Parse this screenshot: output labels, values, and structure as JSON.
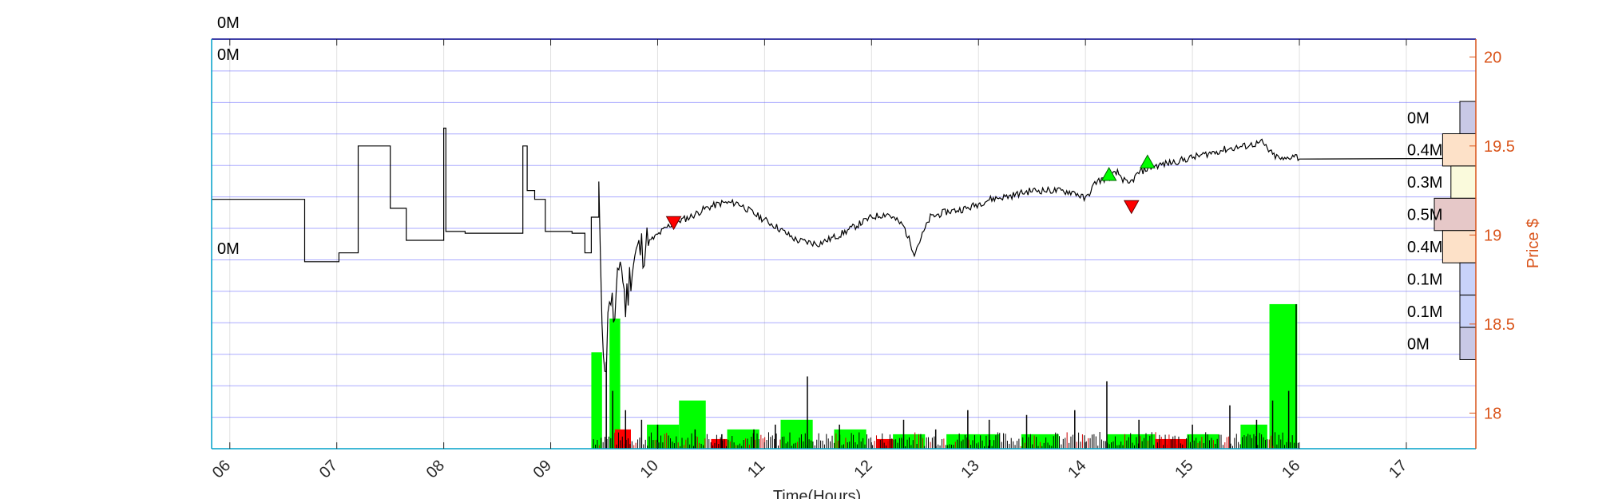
{
  "chart_data": {
    "type": "line",
    "title": "",
    "xlabel": "Time(Hours)",
    "ylabel": "Price $",
    "xlim": [
      5.83,
      17.65
    ],
    "ylim": [
      17.8,
      20.1
    ],
    "x_ticks": [
      "06",
      "07",
      "08",
      "09",
      "10",
      "11",
      "12",
      "13",
      "14",
      "15",
      "16",
      "17"
    ],
    "y_ticks": [
      18,
      18.5,
      19,
      19.5,
      20
    ],
    "y_tick_labels": [
      "18",
      "18.5",
      "19",
      "19.5",
      "20"
    ],
    "grid": true,
    "price_series": [
      [
        5.83,
        19.2
      ],
      [
        6.65,
        19.2
      ],
      [
        6.7,
        18.85
      ],
      [
        6.98,
        18.85
      ],
      [
        7.02,
        18.9
      ],
      [
        7.18,
        18.9
      ],
      [
        7.2,
        19.5
      ],
      [
        7.45,
        19.5
      ],
      [
        7.5,
        19.15
      ],
      [
        7.62,
        19.15
      ],
      [
        7.65,
        18.97
      ],
      [
        8.0,
        18.97
      ],
      [
        8.0,
        19.6
      ],
      [
        8.02,
        19.02
      ],
      [
        8.2,
        19.01
      ],
      [
        8.72,
        19.01
      ],
      [
        8.74,
        19.5
      ],
      [
        8.78,
        19.25
      ],
      [
        8.85,
        19.2
      ],
      [
        8.95,
        19.02
      ],
      [
        9.05,
        19.02
      ],
      [
        9.2,
        19.01
      ],
      [
        9.32,
        18.9
      ],
      [
        9.38,
        19.1
      ],
      [
        9.45,
        19.3
      ],
      [
        9.48,
        18.4
      ],
      [
        9.52,
        18.3
      ],
      [
        9.55,
        18.7
      ],
      [
        9.6,
        18.5
      ],
      [
        9.65,
        18.9
      ],
      [
        9.7,
        18.6
      ],
      [
        9.75,
        18.8
      ],
      [
        9.8,
        18.9
      ],
      [
        9.9,
        18.95
      ],
      [
        10.0,
        19.0
      ],
      [
        10.1,
        19.05
      ],
      [
        10.2,
        19.08
      ],
      [
        10.3,
        19.1
      ],
      [
        10.45,
        19.15
      ],
      [
        10.6,
        19.18
      ],
      [
        10.75,
        19.18
      ],
      [
        10.9,
        19.12
      ],
      [
        11.1,
        19.05
      ],
      [
        11.3,
        18.97
      ],
      [
        11.5,
        18.95
      ],
      [
        11.7,
        19.0
      ],
      [
        11.85,
        19.05
      ],
      [
        12.0,
        19.1
      ],
      [
        12.15,
        19.12
      ],
      [
        12.3,
        19.05
      ],
      [
        12.4,
        18.9
      ],
      [
        12.55,
        19.1
      ],
      [
        12.7,
        19.13
      ],
      [
        12.9,
        19.15
      ],
      [
        13.1,
        19.2
      ],
      [
        13.3,
        19.22
      ],
      [
        13.5,
        19.25
      ],
      [
        13.7,
        19.25
      ],
      [
        13.9,
        19.24
      ],
      [
        14.0,
        19.2
      ],
      [
        14.1,
        19.3
      ],
      [
        14.2,
        19.32
      ],
      [
        14.3,
        19.35
      ],
      [
        14.4,
        19.28
      ],
      [
        14.5,
        19.35
      ],
      [
        14.6,
        19.38
      ],
      [
        14.75,
        19.4
      ],
      [
        14.9,
        19.42
      ],
      [
        15.1,
        19.45
      ],
      [
        15.3,
        19.48
      ],
      [
        15.5,
        19.5
      ],
      [
        15.65,
        19.52
      ],
      [
        15.75,
        19.45
      ],
      [
        15.85,
        19.42
      ],
      [
        15.95,
        19.45
      ],
      [
        16.0,
        19.43
      ],
      [
        17.55,
        19.43
      ]
    ],
    "buy_markers": [
      [
        14.22,
        19.32
      ],
      [
        14.58,
        19.39
      ]
    ],
    "sell_markers": [
      [
        10.15,
        19.09
      ],
      [
        14.43,
        19.18
      ]
    ],
    "volume_bars": {
      "green": [
        [
          9.38,
          9.48,
          0.2
        ],
        [
          9.55,
          9.65,
          0.27
        ],
        [
          9.9,
          10.2,
          0.05
        ],
        [
          10.2,
          10.45,
          0.1
        ],
        [
          10.65,
          10.95,
          0.04
        ],
        [
          11.15,
          11.45,
          0.06
        ],
        [
          11.65,
          11.95,
          0.04
        ],
        [
          12.2,
          12.5,
          0.03
        ],
        [
          12.7,
          13.2,
          0.03
        ],
        [
          13.4,
          13.75,
          0.03
        ],
        [
          14.2,
          14.65,
          0.03
        ],
        [
          14.95,
          15.25,
          0.03
        ],
        [
          15.45,
          15.7,
          0.05
        ],
        [
          15.72,
          15.98,
          0.3
        ]
      ],
      "red": [
        [
          9.6,
          9.75,
          0.04
        ],
        [
          10.5,
          10.65,
          0.02
        ],
        [
          12.05,
          12.2,
          0.02
        ],
        [
          14.65,
          14.95,
          0.02
        ]
      ],
      "spikes": [
        [
          9.52,
          0.18
        ],
        [
          9.58,
          0.12
        ],
        [
          9.7,
          0.08
        ],
        [
          9.85,
          0.06
        ],
        [
          10.0,
          0.05
        ],
        [
          10.35,
          0.04
        ],
        [
          10.6,
          0.03
        ],
        [
          10.9,
          0.04
        ],
        [
          11.1,
          0.05
        ],
        [
          11.4,
          0.15
        ],
        [
          11.7,
          0.05
        ],
        [
          12.3,
          0.06
        ],
        [
          12.6,
          0.04
        ],
        [
          12.9,
          0.08
        ],
        [
          13.1,
          0.06
        ],
        [
          13.45,
          0.07
        ],
        [
          13.9,
          0.08
        ],
        [
          14.2,
          0.14
        ],
        [
          14.5,
          0.06
        ],
        [
          15.0,
          0.05
        ],
        [
          15.35,
          0.09
        ],
        [
          15.6,
          0.06
        ],
        [
          15.75,
          0.1
        ],
        [
          15.9,
          0.12
        ],
        [
          15.97,
          0.3
        ]
      ]
    },
    "volume_profile": [
      {
        "label": "0M",
        "level": 0.1
      },
      {
        "label": "0.4M",
        "level": 0.8
      },
      {
        "label": "0.3M",
        "level": 0.6
      },
      {
        "label": "0.5M",
        "level": 1.0
      },
      {
        "label": "0.4M",
        "level": 0.8
      },
      {
        "label": "0.1M",
        "level": 0.2
      },
      {
        "label": "0.1M",
        "level": 0.2
      },
      {
        "label": "0M",
        "level": 0.1
      }
    ],
    "volume_profile_colors": [
      "#c8c8e6",
      "#fde1c8",
      "#fafadc",
      "#e6c8c8",
      "#fde1c8",
      "#c8d2fa",
      "#c8d2fa",
      "#c8c8e6"
    ],
    "left_volume_labels": [
      "0M",
      "0M",
      "0M"
    ],
    "colors": {
      "price": "#000000",
      "right_axis": "#d95319",
      "volume_up": "#00ff00",
      "volume_down": "#ff0000",
      "buy_marker": "#00ff00",
      "sell_marker": "#ff0000",
      "band_lines": "#6666ff",
      "frame_top": "#00008b",
      "frame_left": "#00a0c8"
    }
  }
}
